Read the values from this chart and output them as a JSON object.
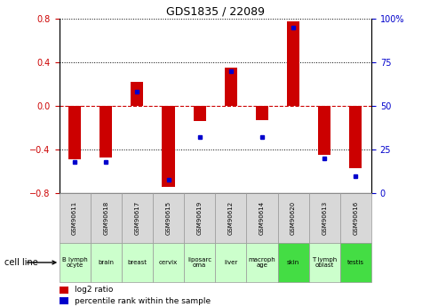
{
  "title": "GDS1835 / 22089",
  "gsm_labels": [
    "GSM90611",
    "GSM90618",
    "GSM90617",
    "GSM90615",
    "GSM90619",
    "GSM90612",
    "GSM90614",
    "GSM90620",
    "GSM90613",
    "GSM90616"
  ],
  "cell_labels": [
    "B lymph\nocyte",
    "brain",
    "breast",
    "cervix",
    "liposarc\noma",
    "liver",
    "macroph\nage",
    "skin",
    "T lymph\noblast",
    "testis"
  ],
  "cell_colors": [
    "#ccffcc",
    "#ccffcc",
    "#ccffcc",
    "#ccffcc",
    "#ccffcc",
    "#ccffcc",
    "#ccffcc",
    "#44dd44",
    "#ccffcc",
    "#44dd44"
  ],
  "log2_ratio": [
    -0.49,
    -0.47,
    0.22,
    -0.74,
    -0.14,
    0.35,
    -0.13,
    0.77,
    -0.45,
    -0.57
  ],
  "percentile_rank": [
    18,
    18,
    58,
    8,
    32,
    70,
    32,
    95,
    20,
    10
  ],
  "ylim_left": [
    -0.8,
    0.8
  ],
  "ylim_right": [
    0,
    100
  ],
  "yticks_left": [
    -0.8,
    -0.4,
    0.0,
    0.4,
    0.8
  ],
  "yticks_right": [
    0,
    25,
    50,
    75,
    100
  ],
  "bar_color": "#cc0000",
  "dot_color": "#0000cc",
  "zero_line_color": "#cc0000",
  "grid_color": "#000000",
  "bar_width": 0.4,
  "legend_items": [
    "log2 ratio",
    "percentile rank within the sample"
  ],
  "gsm_bg": "#d8d8d8"
}
